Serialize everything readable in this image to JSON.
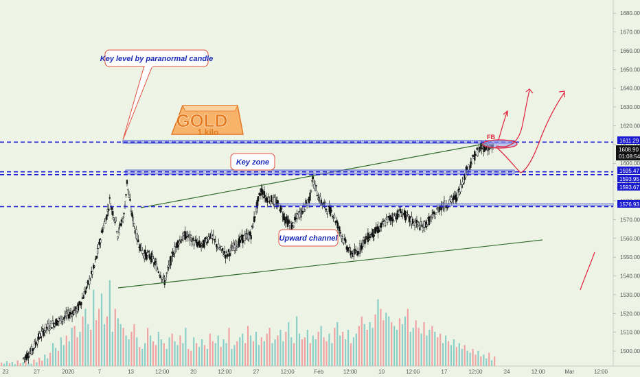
{
  "chart_data": {
    "type": "candlestick",
    "price_axis": {
      "ylim": [
        1492,
        1687
      ],
      "ticks": [
        1500,
        1510,
        1520,
        1530,
        1540,
        1550,
        1560,
        1570,
        1580,
        1590,
        1600,
        1610,
        1620,
        1630,
        1640,
        1650,
        1660,
        1670,
        1680
      ],
      "tick_labels": [
        "1500.00",
        "1510.00",
        "1520.00",
        "1530.00",
        "1540.00",
        "1550.00",
        "1560.00",
        "1570.00",
        "1580.00",
        "1590.00",
        "1600.00",
        "1610.00",
        "1620.00",
        "1630.00",
        "1640.00",
        "1650.00",
        "1660.00",
        "1670.00",
        "1680.00"
      ]
    },
    "time_axis": {
      "labels": [
        "23",
        "27",
        "2020",
        "7",
        "13",
        "12:00",
        "20",
        "12:00",
        "27",
        "12:00",
        "Feb",
        "12:00",
        "10",
        "12:00",
        "17",
        "12:00",
        "24",
        "12:00",
        "Mar",
        "12:00"
      ]
    },
    "levels": [
      {
        "price": 1611.29,
        "label": "1611.29",
        "color": "#1a1ad0"
      },
      {
        "price": 1595.47,
        "label": "1595.47",
        "color": "#1a1ad0"
      },
      {
        "price": 1593.95,
        "label": "1593.95",
        "color": "#1a1ad0"
      },
      {
        "price": 1576.93,
        "label": "1576.93",
        "color": "#1a1ad0"
      }
    ],
    "current_price": {
      "price": 1608.9,
      "label": "1608.90",
      "countdown": "01:08:54"
    },
    "extra_price_tags": [
      {
        "price": 1593.67,
        "label": "1593.67"
      }
    ],
    "annotations": [
      {
        "id": "key-level",
        "text": "Key level by paranormal candle"
      },
      {
        "id": "key-zone",
        "text": "Key zone"
      },
      {
        "id": "upward-channel",
        "text": "Upward channel"
      },
      {
        "id": "fib",
        "text": "FB"
      }
    ],
    "logo": {
      "line1": "GOLD",
      "line2": "1 kilo"
    },
    "path": [
      [
        0,
        1496
      ],
      [
        8,
        1500
      ],
      [
        15,
        1507
      ],
      [
        22,
        1512
      ],
      [
        30,
        1515
      ],
      [
        38,
        1517
      ],
      [
        46,
        1520
      ],
      [
        53,
        1522
      ],
      [
        62,
        1533
      ],
      [
        70,
        1545
      ],
      [
        78,
        1565
      ],
      [
        82,
        1572
      ],
      [
        85,
        1580
      ],
      [
        88,
        1574
      ],
      [
        91,
        1569
      ],
      [
        93,
        1562
      ],
      [
        96,
        1568
      ],
      [
        99,
        1572
      ],
      [
        102,
        1590
      ],
      [
        104,
        1582
      ],
      [
        107,
        1572
      ],
      [
        112,
        1560
      ],
      [
        118,
        1552
      ],
      [
        126,
        1550
      ],
      [
        134,
        1542
      ],
      [
        139,
        1537
      ],
      [
        146,
        1550
      ],
      [
        152,
        1558
      ],
      [
        160,
        1562
      ],
      [
        168,
        1558
      ],
      [
        176,
        1556
      ],
      [
        184,
        1562
      ],
      [
        192,
        1555
      ],
      [
        200,
        1551
      ],
      [
        208,
        1556
      ],
      [
        216,
        1560
      ],
      [
        224,
        1562
      ],
      [
        230,
        1578
      ],
      [
        234,
        1586
      ],
      [
        238,
        1582
      ],
      [
        246,
        1580
      ],
      [
        252,
        1577
      ],
      [
        258,
        1570
      ],
      [
        264,
        1566
      ],
      [
        270,
        1572
      ],
      [
        276,
        1576
      ],
      [
        282,
        1582
      ],
      [
        284,
        1592
      ],
      [
        288,
        1586
      ],
      [
        292,
        1580
      ],
      [
        298,
        1576
      ],
      [
        304,
        1574
      ],
      [
        310,
        1566
      ],
      [
        316,
        1558
      ],
      [
        322,
        1552
      ],
      [
        328,
        1552
      ],
      [
        334,
        1558
      ],
      [
        342,
        1562
      ],
      [
        350,
        1565
      ],
      [
        358,
        1570
      ],
      [
        366,
        1572
      ],
      [
        372,
        1574
      ],
      [
        380,
        1570
      ],
      [
        386,
        1568
      ],
      [
        392,
        1566
      ],
      [
        398,
        1569
      ],
      [
        404,
        1572
      ],
      [
        410,
        1577
      ],
      [
        416,
        1578
      ],
      [
        420,
        1580
      ],
      [
        426,
        1582
      ],
      [
        432,
        1590
      ],
      [
        436,
        1596
      ],
      [
        440,
        1600
      ],
      [
        446,
        1606
      ],
      [
        450,
        1608
      ],
      [
        456,
        1609
      ],
      [
        462,
        1608
      ]
    ],
    "volume_max": 460,
    "volume": [
      18,
      12,
      25,
      15,
      22,
      10,
      30,
      14,
      20,
      26,
      16,
      12,
      34,
      20,
      44,
      28,
      60,
      40,
      70,
      120,
      95,
      80,
      150,
      110,
      160,
      130,
      200,
      210,
      150,
      180,
      260,
      300,
      220,
      190,
      400,
      240,
      300,
      380,
      220,
      260,
      450,
      180,
      300,
      250,
      220,
      200,
      160,
      140,
      180,
      220,
      150,
      100,
      90,
      120,
      200,
      160,
      130,
      110,
      180,
      140,
      120,
      90,
      150,
      170,
      130,
      110,
      160,
      120,
      200,
      90,
      80,
      150,
      120,
      100,
      140,
      110,
      90,
      170,
      130,
      120,
      160,
      100,
      140,
      120,
      200,
      90,
      110,
      130,
      150,
      170,
      120,
      210,
      160,
      130,
      180,
      110,
      150,
      130,
      170,
      200,
      120,
      140,
      160,
      190,
      130,
      180,
      230,
      150,
      120,
      260,
      170,
      140,
      150,
      190,
      120,
      160,
      140,
      180,
      210,
      150,
      130,
      170,
      120,
      200,
      230,
      160,
      180,
      140,
      190,
      120,
      150,
      170,
      210,
      260,
      220,
      190,
      230,
      200,
      270,
      350,
      300,
      240,
      280,
      260,
      230,
      210,
      190,
      250,
      220,
      260,
      300,
      180,
      200,
      240,
      200,
      170,
      230,
      160,
      190,
      210,
      180,
      150,
      170,
      120,
      160,
      130,
      110,
      140,
      100,
      120,
      90,
      110,
      80,
      70,
      90,
      60,
      80,
      50,
      60,
      40,
      70,
      30,
      50
    ]
  }
}
